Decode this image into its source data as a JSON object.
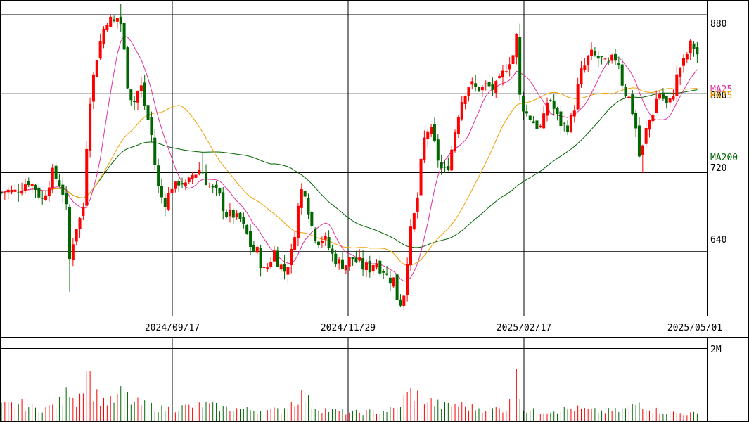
{
  "chart_data": {
    "type": "candlestick",
    "price_axis": {
      "ylim": [
        575,
        895
      ],
      "ticks": [
        880,
        800,
        720,
        640
      ]
    },
    "date_labels": [
      "2024/09/17",
      "2024/11/29",
      "2025/02/17",
      "2025/05/01"
    ],
    "ma_labels": {
      "ma25": "MA25",
      "ma75": "MA75",
      "ma200": "MA200"
    },
    "volume_axis": {
      "ylim": [
        0,
        2200000
      ],
      "tick_label": "2M"
    },
    "colors": {
      "up": "#ff0000",
      "down": "#006600",
      "ma25": "#e0309a",
      "ma75": "#f0a000",
      "ma200": "#006600",
      "grid": "#000000"
    },
    "series": {
      "anchors_close": [
        [
          0,
          700
        ],
        [
          10,
          702
        ],
        [
          20,
          700
        ],
        [
          30,
          705
        ],
        [
          40,
          712
        ],
        [
          50,
          705
        ],
        [
          60,
          692
        ],
        [
          75,
          720
        ],
        [
          88,
          705
        ],
        [
          95,
          680
        ],
        [
          100,
          620
        ],
        [
          103,
          648
        ],
        [
          108,
          665
        ],
        [
          115,
          675
        ],
        [
          120,
          690
        ],
        [
          125,
          780
        ],
        [
          130,
          805
        ],
        [
          137,
          835
        ],
        [
          140,
          845
        ],
        [
          145,
          860
        ],
        [
          150,
          872
        ],
        [
          155,
          878
        ],
        [
          160,
          870
        ],
        [
          165,
          875
        ],
        [
          170,
          880
        ],
        [
          175,
          855
        ],
        [
          180,
          815
        ],
        [
          185,
          800
        ],
        [
          190,
          790
        ],
        [
          195,
          800
        ],
        [
          200,
          810
        ],
        [
          205,
          790
        ],
        [
          210,
          775
        ],
        [
          215,
          760
        ],
        [
          220,
          730
        ],
        [
          225,
          705
        ],
        [
          230,
          695
        ],
        [
          235,
          690
        ],
        [
          240,
          698
        ],
        [
          245,
          708
        ],
        [
          250,
          705
        ],
        [
          255,
          712
        ],
        [
          260,
          710
        ],
        [
          265,
          705
        ],
        [
          270,
          712
        ],
        [
          275,
          720
        ],
        [
          280,
          720
        ],
        [
          285,
          725
        ],
        [
          290,
          718
        ],
        [
          295,
          708
        ],
        [
          300,
          705
        ],
        [
          305,
          700
        ],
        [
          310,
          700
        ],
        [
          315,
          690
        ],
        [
          320,
          680
        ],
        [
          325,
          675
        ],
        [
          330,
          680
        ],
        [
          335,
          672
        ],
        [
          340,
          676
        ],
        [
          345,
          665
        ],
        [
          350,
          660
        ],
        [
          355,
          648
        ],
        [
          360,
          640
        ],
        [
          365,
          642
        ],
        [
          370,
          630
        ],
        [
          375,
          620
        ],
        [
          380,
          624
        ],
        [
          385,
          632
        ],
        [
          390,
          640
        ],
        [
          395,
          630
        ],
        [
          400,
          625
        ],
        [
          405,
          620
        ],
        [
          410,
          630
        ],
        [
          415,
          640
        ],
        [
          420,
          665
        ],
        [
          425,
          690
        ],
        [
          430,
          706
        ],
        [
          435,
          700
        ],
        [
          440,
          676
        ],
        [
          445,
          660
        ],
        [
          450,
          654
        ],
        [
          455,
          650
        ],
        [
          460,
          656
        ],
        [
          465,
          648
        ],
        [
          470,
          640
        ],
        [
          475,
          633
        ],
        [
          480,
          630
        ],
        [
          485,
          628
        ],
        [
          490,
          626
        ],
        [
          495,
          630
        ],
        [
          500,
          635
        ],
        [
          505,
          630
        ],
        [
          510,
          630
        ],
        [
          515,
          624
        ],
        [
          520,
          625
        ],
        [
          525,
          622
        ],
        [
          530,
          628
        ],
        [
          535,
          630
        ],
        [
          540,
          624
        ],
        [
          545,
          622
        ],
        [
          550,
          615
        ],
        [
          555,
          612
        ],
        [
          560,
          612
        ],
        [
          565,
          592
        ],
        [
          570,
          588
        ],
        [
          575,
          600
        ],
        [
          580,
          640
        ],
        [
          585,
          665
        ],
        [
          590,
          680
        ],
        [
          595,
          700
        ],
        [
          600,
          740
        ],
        [
          605,
          760
        ],
        [
          610,
          765
        ],
        [
          615,
          758
        ],
        [
          620,
          742
        ],
        [
          625,
          728
        ],
        [
          630,
          720
        ],
        [
          635,
          722
        ],
        [
          640,
          735
        ],
        [
          645,
          755
        ],
        [
          650,
          775
        ],
        [
          655,
          790
        ],
        [
          660,
          800
        ],
        [
          665,
          808
        ],
        [
          670,
          810
        ],
        [
          675,
          805
        ],
        [
          680,
          806
        ],
        [
          685,
          805
        ],
        [
          690,
          808
        ],
        [
          695,
          807
        ],
        [
          700,
          805
        ],
        [
          705,
          807
        ],
        [
          710,
          812
        ],
        [
          715,
          820
        ],
        [
          720,
          828
        ],
        [
          725,
          835
        ],
        [
          730,
          840
        ],
        [
          735,
          860
        ],
        [
          738,
          800
        ],
        [
          742,
          790
        ],
        [
          748,
          780
        ],
        [
          755,
          775
        ],
        [
          762,
          768
        ],
        [
          770,
          765
        ],
        [
          775,
          780
        ],
        [
          780,
          800
        ],
        [
          785,
          790
        ],
        [
          790,
          780
        ],
        [
          795,
          772
        ],
        [
          800,
          768
        ],
        [
          805,
          765
        ],
        [
          810,
          770
        ],
        [
          815,
          780
        ],
        [
          820,
          800
        ],
        [
          825,
          820
        ],
        [
          830,
          825
        ],
        [
          835,
          835
        ],
        [
          840,
          840
        ],
        [
          845,
          838
        ],
        [
          850,
          836
        ],
        [
          855,
          835
        ],
        [
          860,
          830
        ],
        [
          865,
          828
        ],
        [
          870,
          834
        ],
        [
          875,
          836
        ],
        [
          880,
          832
        ],
        [
          885,
          810
        ],
        [
          890,
          800
        ],
        [
          895,
          795
        ],
        [
          900,
          780
        ],
        [
          905,
          762
        ],
        [
          910,
          730
        ],
        [
          915,
          750
        ],
        [
          920,
          768
        ],
        [
          925,
          775
        ],
        [
          930,
          785
        ],
        [
          935,
          800
        ],
        [
          940,
          802
        ],
        [
          945,
          790
        ],
        [
          950,
          788
        ],
        [
          955,
          795
        ],
        [
          960,
          810
        ],
        [
          965,
          825
        ],
        [
          970,
          830
        ],
        [
          975,
          835
        ],
        [
          980,
          850
        ],
        [
          985,
          848
        ],
        [
          990,
          845
        ],
        [
          995,
          828
        ]
      ],
      "volume_anchors": [
        [
          0,
          0.22
        ],
        [
          30,
          0.25
        ],
        [
          50,
          0.18
        ],
        [
          70,
          0.2
        ],
        [
          90,
          0.3
        ],
        [
          100,
          0.55
        ],
        [
          110,
          0.25
        ],
        [
          125,
          0.95
        ],
        [
          130,
          0.5
        ],
        [
          140,
          0.35
        ],
        [
          150,
          0.3
        ],
        [
          160,
          0.28
        ],
        [
          175,
          0.45
        ],
        [
          185,
          0.3
        ],
        [
          200,
          0.25
        ],
        [
          215,
          0.22
        ],
        [
          230,
          0.18
        ],
        [
          260,
          0.2
        ],
        [
          290,
          0.25
        ],
        [
          310,
          0.2
        ],
        [
          340,
          0.18
        ],
        [
          370,
          0.15
        ],
        [
          400,
          0.16
        ],
        [
          430,
          0.4
        ],
        [
          445,
          0.22
        ],
        [
          470,
          0.15
        ],
        [
          500,
          0.12
        ],
        [
          540,
          0.14
        ],
        [
          565,
          0.18
        ],
        [
          575,
          0.35
        ],
        [
          585,
          0.45
        ],
        [
          595,
          0.38
        ],
        [
          610,
          0.3
        ],
        [
          630,
          0.22
        ],
        [
          650,
          0.25
        ],
        [
          670,
          0.2
        ],
        [
          700,
          0.18
        ],
        [
          720,
          0.18
        ],
        [
          735,
          0.98
        ],
        [
          742,
          0.18
        ],
        [
          760,
          0.14
        ],
        [
          790,
          0.16
        ],
        [
          820,
          0.18
        ],
        [
          850,
          0.14
        ],
        [
          880,
          0.15
        ],
        [
          900,
          0.22
        ],
        [
          910,
          0.28
        ],
        [
          930,
          0.16
        ],
        [
          960,
          0.12
        ],
        [
          990,
          0.1
        ]
      ]
    }
  }
}
